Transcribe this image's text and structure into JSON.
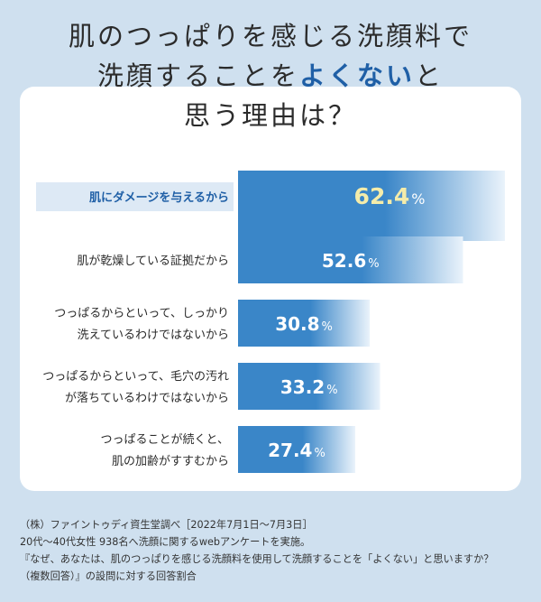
{
  "title": {
    "line1": "肌のつっぱりを感じる洗顔料で",
    "line2_pre": "洗顔することを",
    "line2_highlight": "よくない",
    "line2_post": "と",
    "line3": "思う理由は？"
  },
  "chart_data": {
    "type": "bar",
    "orientation": "horizontal",
    "categories": [
      [
        "肌にダメージを与えるから"
      ],
      [
        "肌が乾燥している証拠だから"
      ],
      [
        "つっぱるからといって、しっかり",
        "洗えているわけではないから"
      ],
      [
        "つっぱるからといって、毛穴の汚れ",
        "が落ちているわけではないから"
      ],
      [
        "つっぱることが続くと、",
        "肌の加齢がすすむから"
      ]
    ],
    "values": [
      62.4,
      52.6,
      30.8,
      33.2,
      27.4
    ],
    "value_labels": [
      "62.4",
      "52.6",
      "30.8",
      "33.2",
      "27.4"
    ],
    "unit": "%",
    "highlight_index": 0,
    "xlim": [
      0,
      62.4
    ],
    "colors": {
      "bar_dark": "#3a86c8",
      "bar_light": "#eaf3fb",
      "highlight_value": "#f4ecaa",
      "value_text": "#ffffff",
      "highlight_label_bg": "#dde9f5",
      "highlight_label_text": "#1f5fa6"
    }
  },
  "footnote": {
    "line1": "（株）ファイントゥディ資生堂調べ［2022年7月1日～7月3日］",
    "line2": "20代～40代女性 938名へ洗顔に関するwebアンケートを実施。",
    "line3": "『なぜ、あなたは、肌のつっぱりを感じる洗顔料を使用して洗顔することを「よくない」と思いますか？",
    "line4": "（複数回答）』の設問に対する回答割合"
  }
}
